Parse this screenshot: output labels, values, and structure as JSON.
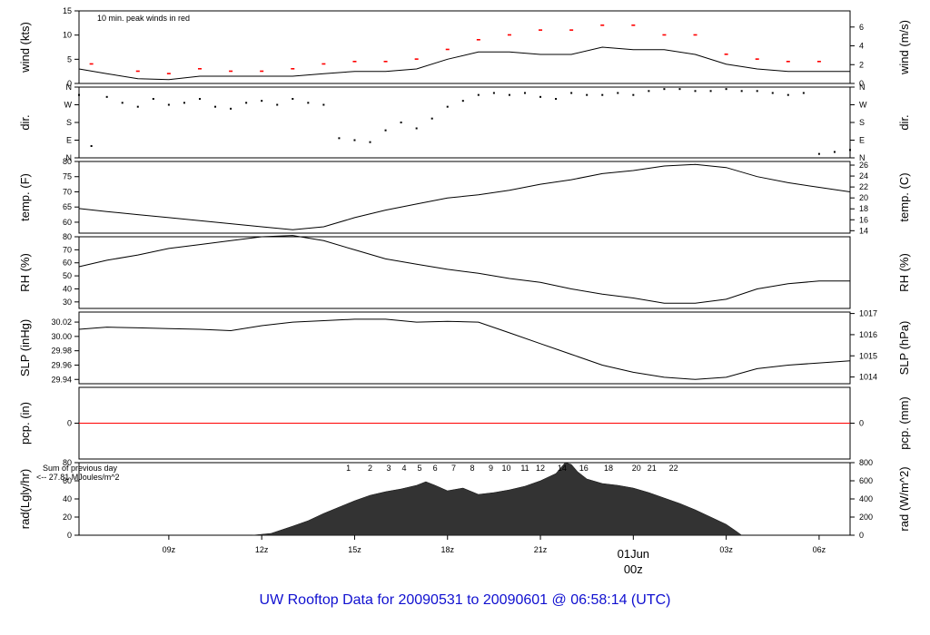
{
  "title": "UW Rooftop Data for 20090531  to  20090601 @ 06:58:14  (UTC)",
  "chart_data": [
    {
      "type": "line",
      "id": "wind",
      "ylabel": "wind (kts)",
      "ylabel_right": "wind (m/s)",
      "ylim": [
        0,
        15
      ],
      "yticks": [
        0,
        5,
        10,
        15
      ],
      "yticks_right": [
        0,
        2,
        4,
        6
      ],
      "annotation": "10 min. peak winds in red",
      "colors": {
        "line": "#000000",
        "peak": "#ff0000"
      },
      "series": [
        {
          "name": "wind",
          "x": [
            6.1,
            7,
            8,
            9,
            10,
            11,
            12,
            13,
            14,
            15,
            16,
            17,
            18,
            19,
            20,
            21,
            22,
            23,
            24,
            25,
            26,
            27,
            28,
            29,
            30,
            31
          ],
          "y": [
            3,
            2,
            1,
            0.8,
            1.5,
            1.5,
            1.5,
            1.5,
            2,
            2.5,
            2.5,
            3,
            5,
            6.5,
            6.5,
            6,
            6,
            7.5,
            7,
            7,
            6,
            4,
            3,
            2.5,
            2.5,
            2.5
          ]
        },
        {
          "name": "peak",
          "x": [
            6.5,
            8,
            9,
            10,
            11,
            12,
            13,
            14,
            15,
            16,
            17,
            18,
            19,
            20,
            21,
            22,
            23,
            24,
            25,
            26,
            27,
            28,
            29,
            30
          ],
          "y": [
            4,
            2.5,
            2,
            3,
            2.5,
            2.5,
            3,
            4,
            4.5,
            4.5,
            5,
            7,
            9,
            10,
            11,
            11,
            12,
            12,
            10,
            10,
            6,
            5,
            4.5,
            4.5
          ]
        }
      ]
    },
    {
      "type": "scatter",
      "id": "dir",
      "ylabel": "dir.",
      "ylabel_right": "dir.",
      "ylim": [
        0,
        360
      ],
      "ytick_labels": [
        "N",
        "E",
        "S",
        "W",
        "N"
      ],
      "x": [
        6.1,
        6.5,
        7,
        7.5,
        8,
        8.5,
        9,
        9.5,
        10,
        10.5,
        11,
        11.5,
        12,
        12.5,
        13,
        13.5,
        14,
        14.5,
        15,
        15.5,
        16,
        16.5,
        17,
        17.5,
        18,
        18.5,
        19,
        19.5,
        20,
        20.5,
        21,
        21.5,
        22,
        22.5,
        23,
        23.5,
        24,
        24.5,
        25,
        25.5,
        26,
        26.5,
        27,
        27.5,
        28,
        28.5,
        29,
        29.5,
        30,
        30.5,
        31
      ],
      "y": [
        320,
        60,
        310,
        280,
        260,
        300,
        270,
        280,
        300,
        260,
        250,
        280,
        290,
        270,
        300,
        280,
        270,
        100,
        90,
        80,
        140,
        180,
        150,
        200,
        260,
        290,
        320,
        330,
        320,
        330,
        310,
        300,
        330,
        320,
        320,
        330,
        320,
        340,
        350,
        350,
        340,
        340,
        350,
        340,
        340,
        330,
        320,
        330,
        20,
        30,
        40
      ]
    },
    {
      "type": "line",
      "id": "temp",
      "ylabel": "temp. (F)",
      "ylabel_right": "temp. (C)",
      "ylim": [
        56.4,
        80
      ],
      "yticks": [
        60,
        65,
        70,
        75,
        80
      ],
      "yticks_right": [
        14,
        16,
        18,
        20,
        22,
        24,
        26
      ],
      "x": [
        6.1,
        7,
        8,
        9,
        10,
        11,
        12,
        13,
        14,
        15,
        16,
        17,
        18,
        19,
        20,
        21,
        22,
        23,
        24,
        25,
        26,
        27,
        28,
        29,
        30,
        31
      ],
      "y": [
        64.5,
        63.5,
        62.5,
        61.5,
        60.5,
        59.5,
        58.5,
        57.5,
        58.5,
        61.5,
        64,
        66,
        68,
        69,
        70.5,
        72.5,
        74,
        76,
        77,
        78.5,
        79,
        78,
        75,
        73,
        71.5,
        70
      ]
    },
    {
      "type": "line",
      "id": "rh",
      "ylabel": "RH (%)",
      "ylabel_right": "RH (%)",
      "ylim": [
        25,
        80
      ],
      "yticks": [
        30,
        40,
        50,
        60,
        70,
        80
      ],
      "x": [
        6.1,
        7,
        8,
        9,
        10,
        11,
        12,
        13,
        14,
        15,
        16,
        17,
        18,
        19,
        20,
        21,
        22,
        23,
        24,
        25,
        26,
        27,
        28,
        29,
        30,
        31
      ],
      "y": [
        57,
        62,
        66,
        71,
        74,
        77,
        80,
        81,
        77,
        70,
        63,
        59,
        55,
        52,
        48,
        45,
        40,
        36,
        33,
        29,
        29,
        32,
        40,
        44,
        46,
        46
      ]
    },
    {
      "type": "line",
      "id": "slp",
      "ylabel": "SLP (inHg)",
      "ylabel_right": "SLP (hPa)",
      "ylim": [
        29.934,
        30.034
      ],
      "yticks": [
        29.94,
        29.96,
        29.98,
        30.0,
        30.02
      ],
      "ytick_labels": [
        "29.94",
        "29.96",
        "29.98",
        "30.00",
        "30.02"
      ],
      "yticks_right": [
        1014,
        1015,
        1016,
        1017
      ],
      "x": [
        6.1,
        7,
        8,
        9,
        10,
        11,
        12,
        13,
        14,
        15,
        16,
        17,
        18,
        19,
        20,
        21,
        22,
        23,
        24,
        25,
        26,
        27,
        28,
        29,
        30,
        31
      ],
      "y": [
        30.01,
        30.013,
        30.012,
        30.011,
        30.01,
        30.008,
        30.015,
        30.02,
        30.022,
        30.024,
        30.024,
        30.02,
        30.021,
        30.02,
        30.005,
        29.99,
        29.975,
        29.96,
        29.95,
        29.943,
        29.94,
        29.943,
        29.955,
        29.96,
        29.963,
        29.966
      ]
    },
    {
      "type": "line",
      "id": "pcp",
      "ylabel": "pcp. (in)",
      "ylabel_right": "pcp. (mm)",
      "ylim": [
        -1,
        1
      ],
      "yticks": [
        0
      ],
      "yticks_right": [
        0
      ],
      "colors": {
        "line": "#ff0000"
      },
      "x": [
        6.1,
        31
      ],
      "y": [
        0,
        0
      ]
    },
    {
      "type": "area",
      "id": "rad",
      "ylabel": "rad(Lgly/hr)",
      "ylabel_right": "rad (W/m^2)",
      "ylim": [
        0,
        80
      ],
      "yticks": [
        0,
        20,
        40,
        60,
        80
      ],
      "yticks_right": [
        0,
        200,
        400,
        600,
        800
      ],
      "colors": {
        "fill": "#333333",
        "labels": "#9900cc"
      },
      "annotation_lines": [
        "Sum of previous day",
        "<-- 27.81 MJoules/m^2"
      ],
      "hour_labels": [
        "1",
        "2",
        "3",
        "4",
        "5",
        "6",
        "7",
        "8",
        "9",
        "10",
        "11",
        "12",
        "14",
        "16",
        "18",
        "20",
        "21",
        "22"
      ],
      "hour_positions": [
        14.8,
        15.5,
        16.1,
        16.6,
        17.1,
        17.6,
        18.2,
        18.8,
        19.4,
        19.9,
        20.5,
        21,
        21.7,
        22.4,
        23.2,
        24.1,
        24.6,
        25.3
      ],
      "x": [
        11.7,
        12.3,
        13,
        13.5,
        14,
        14.5,
        15,
        15.5,
        16,
        16.5,
        17,
        17.3,
        17.6,
        18,
        18.5,
        19,
        19.5,
        20,
        20.5,
        21,
        21.5,
        21.8,
        22,
        22.2,
        22.5,
        23,
        23.5,
        24,
        24.5,
        25,
        25.5,
        26,
        26.5,
        27,
        27.3,
        27.5
      ],
      "y": [
        0,
        2,
        10,
        16,
        24,
        31,
        38,
        44,
        48,
        51,
        55,
        59,
        55,
        49,
        52,
        45,
        47,
        50,
        54,
        60,
        68,
        80,
        78,
        70,
        62,
        57,
        55,
        52,
        47,
        41,
        35,
        28,
        20,
        12,
        5,
        0
      ]
    }
  ],
  "time_axis": {
    "range_hours": [
      6.1,
      31
    ],
    "tick_hours": [
      9,
      12,
      15,
      18,
      21,
      24,
      27,
      30
    ],
    "tick_labels": [
      "09z",
      "12z",
      "15z",
      "18z",
      "21z",
      "",
      "03z",
      "06z"
    ],
    "day_label": "01Jun",
    "day_sublabel": "00z",
    "day_color": "#cc0000"
  }
}
